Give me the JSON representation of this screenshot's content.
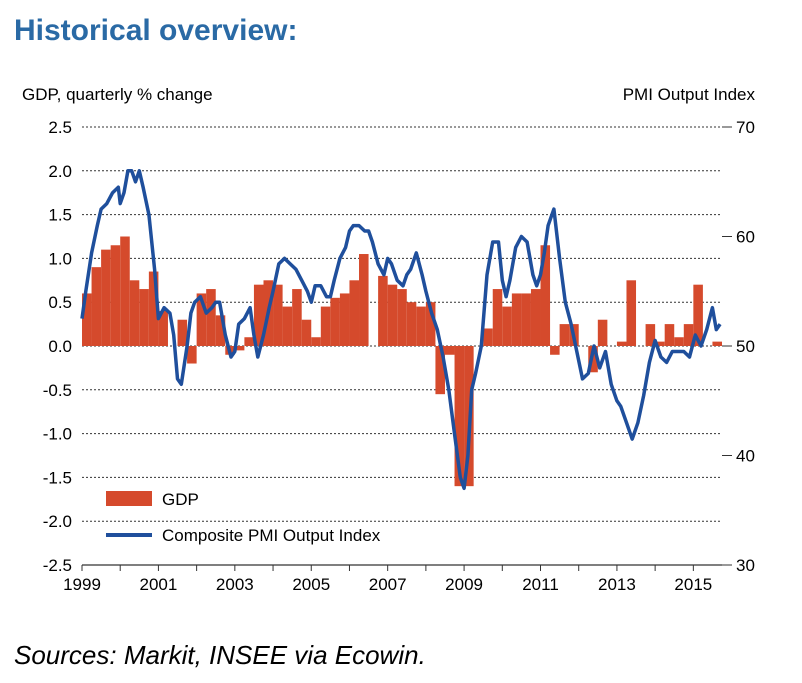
{
  "heading": "Historical overview:",
  "source": "Sources: Markit, INSEE via Ecowin.",
  "chart_data": {
    "type": "bar+line",
    "y_left_label": "GDP, quarterly % change",
    "y_right_label": "PMI Output  Index",
    "y_left_lim": [
      -2.5,
      2.5
    ],
    "y_left_ticks": [
      "2.5",
      "2.0",
      "1.5",
      "1.0",
      "0.5",
      "0.0",
      "-0.5",
      "-1.0",
      "-1.5",
      "-2.0",
      "-2.5"
    ],
    "y_right_lim": [
      30,
      70
    ],
    "y_right_ticks": [
      "70",
      "60",
      "50",
      "40",
      "30"
    ],
    "x_lim": [
      1999.0,
      2015.75
    ],
    "x_ticks": [
      "1999",
      "2001",
      "2003",
      "2005",
      "2007",
      "2009",
      "2011",
      "2013",
      "2015"
    ],
    "grid": "dashed horizontal",
    "legend_position": "bottom-left",
    "colors": {
      "gdp": "#d54a2c",
      "pmi": "#1f4f9c",
      "title": "#2a6aa5"
    },
    "series": [
      {
        "name": "GDP",
        "kind": "bar",
        "quarter_start": [
          1999.0,
          1999.25,
          1999.5,
          1999.75,
          2000.0,
          2000.25,
          2000.5,
          2000.75,
          2001.0,
          2001.25,
          2001.5,
          2001.75,
          2002.0,
          2002.25,
          2002.5,
          2002.75,
          2003.0,
          2003.25,
          2003.5,
          2003.75,
          2004.0,
          2004.25,
          2004.5,
          2004.75,
          2005.0,
          2005.25,
          2005.5,
          2005.75,
          2006.0,
          2006.25,
          2006.5,
          2006.75,
          2007.0,
          2007.25,
          2007.5,
          2007.75,
          2008.0,
          2008.25,
          2008.5,
          2008.75,
          2009.0,
          2009.25,
          2009.5,
          2009.75,
          2010.0,
          2010.25,
          2010.5,
          2010.75,
          2011.0,
          2011.25,
          2011.5,
          2011.75,
          2012.0,
          2012.25,
          2012.5,
          2012.75,
          2013.0,
          2013.25,
          2013.5,
          2013.75,
          2014.0,
          2014.25,
          2014.5,
          2014.75,
          2015.0,
          2015.25,
          2015.5
        ],
        "values": [
          0.6,
          0.9,
          1.1,
          1.15,
          1.25,
          0.75,
          0.65,
          0.85,
          0.4,
          0.0,
          0.3,
          -0.2,
          0.6,
          0.65,
          0.35,
          -0.1,
          -0.05,
          0.1,
          0.7,
          0.75,
          0.7,
          0.45,
          0.65,
          0.3,
          0.1,
          0.45,
          0.55,
          0.6,
          0.75,
          1.05,
          0.0,
          0.8,
          0.7,
          0.65,
          0.5,
          0.45,
          0.5,
          -0.55,
          -0.1,
          -1.6,
          -1.6,
          0.0,
          0.2,
          0.65,
          0.45,
          0.6,
          0.6,
          0.65,
          1.15,
          -0.1,
          0.25,
          0.25,
          0.0,
          -0.3,
          0.3,
          0.0,
          0.05,
          0.75,
          0.0,
          0.25,
          0.05,
          0.25,
          0.1,
          0.25,
          0.7,
          0.0,
          0.05
        ]
      },
      {
        "name": "Composite PMI Output Index",
        "kind": "line",
        "axis": "right",
        "x": [
          1999.0,
          1999.1,
          1999.25,
          1999.4,
          1999.5,
          1999.65,
          1999.8,
          1999.95,
          2000.0,
          2000.1,
          2000.2,
          2000.3,
          2000.4,
          2000.5,
          2000.6,
          2000.75,
          2000.9,
          2001.0,
          2001.15,
          2001.3,
          2001.4,
          2001.5,
          2001.6,
          2001.75,
          2001.85,
          2001.95,
          2002.1,
          2002.25,
          2002.4,
          2002.5,
          2002.6,
          2002.75,
          2002.9,
          2003.0,
          2003.1,
          2003.25,
          2003.4,
          2003.5,
          2003.6,
          2003.75,
          2003.9,
          2004.0,
          2004.15,
          2004.3,
          2004.45,
          2004.6,
          2004.75,
          2004.9,
          2005.0,
          2005.1,
          2005.25,
          2005.4,
          2005.5,
          2005.6,
          2005.75,
          2005.9,
          2006.0,
          2006.1,
          2006.25,
          2006.4,
          2006.5,
          2006.6,
          2006.75,
          2006.9,
          2007.0,
          2007.1,
          2007.25,
          2007.4,
          2007.5,
          2007.6,
          2007.75,
          2007.9,
          2008.0,
          2008.15,
          2008.3,
          2008.45,
          2008.6,
          2008.75,
          2008.9,
          2009.0,
          2009.1,
          2009.2,
          2009.3,
          2009.45,
          2009.6,
          2009.75,
          2009.9,
          2010.0,
          2010.1,
          2010.2,
          2010.35,
          2010.5,
          2010.65,
          2010.8,
          2010.9,
          2011.0,
          2011.1,
          2011.2,
          2011.35,
          2011.5,
          2011.65,
          2011.8,
          2011.95,
          2012.1,
          2012.25,
          2012.4,
          2012.55,
          2012.7,
          2012.85,
          2013.0,
          2013.1,
          2013.25,
          2013.4,
          2013.55,
          2013.7,
          2013.85,
          2014.0,
          2014.15,
          2014.3,
          2014.45,
          2014.6,
          2014.75,
          2014.9,
          2015.05,
          2015.2,
          2015.35,
          2015.5,
          2015.6,
          2015.7
        ],
        "values": [
          52.5,
          55,
          58.5,
          61,
          62.5,
          63,
          64,
          64.5,
          63,
          64,
          66,
          66,
          65,
          66,
          64.5,
          62,
          57,
          52.5,
          53.5,
          53,
          51,
          47,
          46.5,
          50,
          53,
          54,
          54.5,
          53,
          53.5,
          54,
          54,
          51,
          49,
          49.5,
          52,
          52.5,
          53.5,
          51,
          49,
          51,
          53.5,
          55,
          57.5,
          58,
          57.5,
          57,
          56,
          55,
          54,
          55.5,
          55.5,
          54.5,
          54.5,
          56,
          58,
          59,
          60.5,
          61,
          61,
          60.5,
          60.5,
          59.5,
          57.5,
          56.5,
          58,
          57.5,
          56,
          55.5,
          56.5,
          57,
          58.5,
          56.5,
          55,
          53,
          51.5,
          49,
          46,
          42,
          38,
          37,
          40,
          46,
          47.5,
          50,
          56.5,
          59.5,
          59.5,
          56,
          54.5,
          56,
          59,
          60,
          59.5,
          56.5,
          55.5,
          56.5,
          58.5,
          61,
          62.5,
          58,
          54,
          52,
          49.5,
          47,
          47.5,
          50,
          48,
          49.5,
          46.5,
          45,
          44.5,
          43,
          41.5,
          43,
          45.5,
          48.5,
          50.5,
          49,
          48.5,
          49.5,
          49.5,
          49.5,
          49,
          51,
          50,
          51.5,
          53.5,
          51.5,
          52
        ]
      }
    ]
  }
}
